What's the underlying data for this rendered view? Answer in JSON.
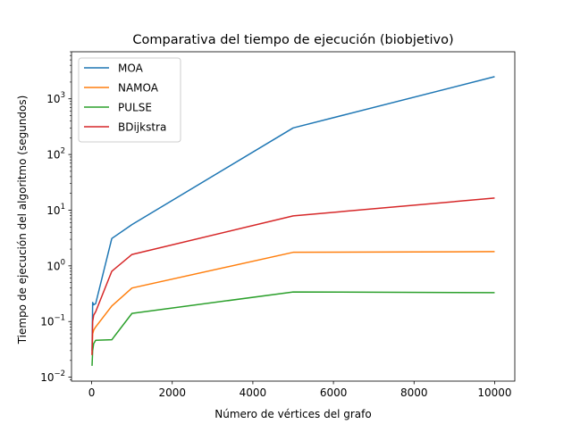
{
  "chart_data": {
    "type": "line",
    "title": "Comparativa del tiempo de ejecución (biobjetivo)",
    "xlabel": "Número de vértices del grafo",
    "ylabel": "Tiempo de ejecución del algoritmo (segundos)",
    "xlim": [
      -500,
      10500
    ],
    "ylim": [
      0.0085,
      7000
    ],
    "yscale": "log",
    "grid": false,
    "legend_position": "top-left",
    "x_ticks": [
      0,
      2000,
      4000,
      6000,
      8000,
      10000
    ],
    "x_tick_labels": [
      "0",
      "2000",
      "4000",
      "6000",
      "8000",
      "10000"
    ],
    "y_ticks": [
      0.01,
      0.1,
      1,
      10,
      100,
      1000
    ],
    "y_tick_base": "10",
    "y_tick_exponents": [
      "−2",
      "−1",
      "0",
      "1",
      "2",
      "3"
    ],
    "series": [
      {
        "name": "MOA",
        "color": "#1f77b4",
        "x": [
          10,
          25,
          50,
          100,
          500,
          1000,
          5000,
          10000
        ],
        "y": [
          0.03,
          0.22,
          0.2,
          0.21,
          3.1,
          5.5,
          300,
          2500
        ]
      },
      {
        "name": "NAMOA",
        "color": "#ff7f0e",
        "x": [
          10,
          25,
          50,
          100,
          500,
          1000,
          5000,
          10000
        ],
        "y": [
          0.025,
          0.06,
          0.07,
          0.08,
          0.19,
          0.4,
          1.75,
          1.8
        ]
      },
      {
        "name": "PULSE",
        "color": "#2ca02c",
        "x": [
          10,
          25,
          50,
          100,
          500,
          1000,
          5000,
          10000
        ],
        "y": [
          0.016,
          0.03,
          0.04,
          0.046,
          0.047,
          0.14,
          0.34,
          0.33
        ]
      },
      {
        "name": "BDijkstra",
        "color": "#d62728",
        "x": [
          10,
          25,
          50,
          100,
          500,
          1000,
          5000,
          10000
        ],
        "y": [
          0.025,
          0.1,
          0.13,
          0.15,
          0.8,
          1.6,
          7.9,
          16.5
        ]
      }
    ]
  }
}
